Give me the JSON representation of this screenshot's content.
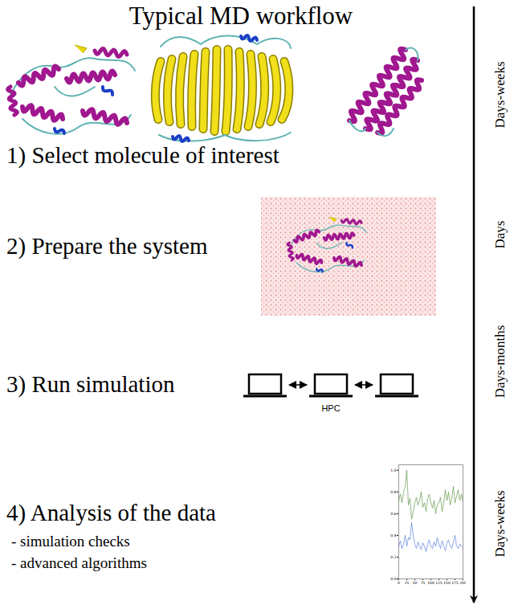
{
  "title": "Typical MD workflow",
  "steps": [
    {
      "label": "1) Select molecule of interest",
      "duration": "Days-weeks"
    },
    {
      "label": "2) Prepare the system",
      "duration": "Days"
    },
    {
      "label": "3) Run simulation",
      "duration": "Days-months",
      "note": "HPC"
    },
    {
      "label": "4) Analysis of the data",
      "duration": "Days-weeks",
      "items": [
        "- simulation checks",
        "- advanced algorithms"
      ]
    }
  ],
  "chart_data": {
    "type": "line",
    "x": [
      0,
      5,
      10,
      15,
      20,
      25,
      30,
      35,
      40,
      45,
      50,
      55,
      60,
      65,
      70,
      75,
      80,
      85,
      90,
      95,
      100,
      105,
      110,
      115,
      120,
      125,
      130,
      135,
      140,
      145,
      150,
      155,
      160,
      165,
      170,
      175,
      180,
      185,
      190,
      195,
      200
    ],
    "series": [
      {
        "color": "#4a8a2e",
        "values": [
          0.72,
          0.78,
          0.7,
          0.8,
          0.85,
          1.0,
          0.68,
          0.74,
          0.55,
          0.62,
          0.7,
          0.75,
          0.68,
          0.72,
          0.8,
          0.66,
          0.7,
          0.62,
          0.74,
          0.78,
          0.7,
          0.65,
          0.72,
          0.6,
          0.68,
          0.7,
          0.75,
          0.62,
          0.7,
          0.82,
          0.72,
          0.8,
          0.68,
          0.74,
          0.85,
          0.7,
          0.76,
          0.82,
          0.72,
          0.78,
          0.7
        ]
      },
      {
        "color": "#3a6fd8",
        "values": [
          0.3,
          0.35,
          0.28,
          0.32,
          0.4,
          0.3,
          0.38,
          0.36,
          0.52,
          0.4,
          0.32,
          0.28,
          0.34,
          0.3,
          0.27,
          0.33,
          0.3,
          0.25,
          0.32,
          0.36,
          0.3,
          0.28,
          0.34,
          0.3,
          0.38,
          0.32,
          0.28,
          0.35,
          0.3,
          0.26,
          0.33,
          0.36,
          0.3,
          0.28,
          0.34,
          0.4,
          0.3,
          0.28,
          0.32,
          0.3,
          0.29
        ]
      }
    ],
    "xlim": [
      0,
      200
    ],
    "xticks": [
      0,
      25,
      50,
      75,
      100,
      125,
      150,
      175,
      200
    ],
    "ylim": [
      0,
      1.05
    ],
    "yticks": [
      {
        "value": 0,
        "label": "0.0"
      },
      {
        "value": 0.2,
        "label": "0.2"
      },
      {
        "value": 0.4,
        "label": "0.4"
      },
      {
        "value": 0.6,
        "label": "0.6"
      },
      {
        "value": 0.8,
        "label": "0.8"
      },
      {
        "value": 1,
        "label": "1.0"
      }
    ]
  }
}
